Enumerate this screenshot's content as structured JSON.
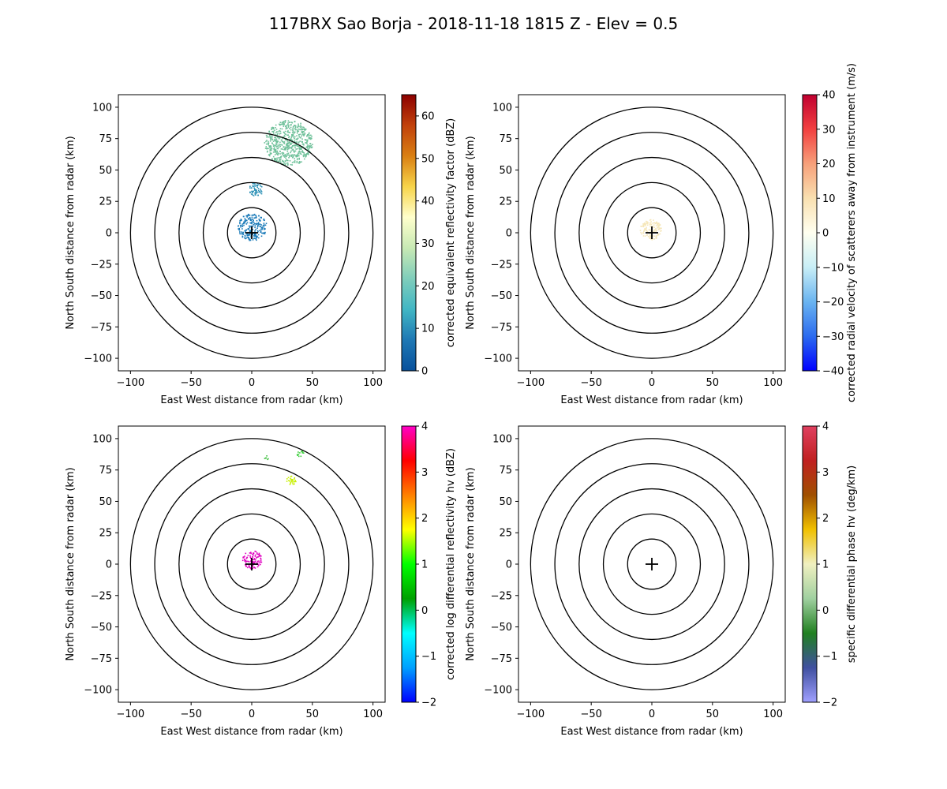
{
  "figure": {
    "title": "117BRX Sao Borja - 2018-11-18 1815 Z -  Elev = 0.5"
  },
  "chart_data": [
    {
      "type": "radar_ppi",
      "title": "",
      "xlabel": "East West distance from radar (km)",
      "ylabel": "North South distance from radar (km)",
      "xlim": [
        -110,
        110
      ],
      "ylim": [
        -110,
        110
      ],
      "xticks": [
        -100,
        -50,
        0,
        50,
        100
      ],
      "yticks": [
        -100,
        -75,
        -50,
        -25,
        0,
        25,
        50,
        75,
        100
      ],
      "range_rings_km": [
        20,
        40,
        60,
        80,
        100
      ],
      "colorbar": {
        "label": "corrected equivalent reflectivity factor (dBZ)",
        "min": 0,
        "max": 65,
        "ticks": [
          0,
          10,
          20,
          30,
          40,
          50,
          60
        ],
        "stops": [
          "#08519c",
          "#1f78b4",
          "#41b6c4",
          "#7fcdbb",
          "#c7e9b4",
          "#ffffcc",
          "#f7d44a",
          "#d97f12",
          "#c1410b",
          "#8c0000"
        ]
      },
      "echo_regions": [
        {
          "name": "near-radar",
          "center_km": [
            0,
            5
          ],
          "radius_km": 12,
          "color": "#1a7ab8"
        },
        {
          "name": "north-band",
          "center_km": [
            3,
            35
          ],
          "radius_km": 6,
          "color": "#2a8fb5"
        },
        {
          "name": "north-east-arc",
          "center_km": [
            30,
            72
          ],
          "radius_km": 20,
          "color": "#6fc19a"
        }
      ]
    },
    {
      "type": "radar_ppi",
      "title": "",
      "xlabel": "East West distance from radar (km)",
      "ylabel": "North South distance from radar (km)",
      "xlim": [
        -110,
        110
      ],
      "ylim": [
        -110,
        110
      ],
      "xticks": [
        -100,
        -50,
        0,
        50,
        100
      ],
      "yticks": [
        -100,
        -75,
        -50,
        -25,
        0,
        25,
        50,
        75,
        100
      ],
      "range_rings_km": [
        20,
        40,
        60,
        80,
        100
      ],
      "colorbar": {
        "label": "corrected radial velocity of scatterers away from instrument (m/s)",
        "min": -40,
        "max": 40,
        "ticks": [
          -40,
          -30,
          -20,
          -10,
          0,
          10,
          20,
          30,
          40
        ],
        "stops": [
          "#0000ff",
          "#2b6bef",
          "#6ab4f0",
          "#c8eef6",
          "#fffff0",
          "#f9e0b0",
          "#f7a07a",
          "#f24040",
          "#c00030"
        ]
      },
      "echo_regions": [
        {
          "name": "near-radar",
          "center_km": [
            -1,
            3
          ],
          "radius_km": 9,
          "color": "#f5e6b8"
        }
      ]
    },
    {
      "type": "radar_ppi",
      "title": "",
      "xlabel": "East West distance from radar (km)",
      "ylabel": "North South distance from radar (km)",
      "xlim": [
        -110,
        110
      ],
      "ylim": [
        -110,
        110
      ],
      "xticks": [
        -100,
        -50,
        0,
        50,
        100
      ],
      "yticks": [
        -100,
        -75,
        -50,
        -25,
        0,
        25,
        50,
        75,
        100
      ],
      "range_rings_km": [
        20,
        40,
        60,
        80,
        100
      ],
      "colorbar": {
        "label": "corrected log differential reflectivity hv (dBZ)",
        "min": -2,
        "max": 4,
        "ticks": [
          -2,
          -1,
          0,
          1,
          2,
          3,
          4
        ],
        "stops": [
          "#0000ff",
          "#00a0ff",
          "#00ffff",
          "#00a000",
          "#00ff00",
          "#ffff00",
          "#ff8000",
          "#ff0000",
          "#ff00c8"
        ]
      },
      "echo_regions": [
        {
          "name": "near-radar",
          "center_km": [
            0,
            4
          ],
          "radius_km": 8,
          "color": "#e000c0"
        },
        {
          "name": "north-east-a",
          "center_km": [
            32,
            67
          ],
          "radius_km": 4,
          "color": "#c8f000"
        },
        {
          "name": "north-east-b",
          "center_km": [
            40,
            88
          ],
          "radius_km": 3,
          "color": "#40d040"
        },
        {
          "name": "north-c",
          "center_km": [
            12,
            85
          ],
          "radius_km": 2,
          "color": "#40c040"
        }
      ]
    },
    {
      "type": "radar_ppi",
      "title": "",
      "xlabel": "East West distance from radar (km)",
      "ylabel": "North South distance from radar (km)",
      "xlim": [
        -110,
        110
      ],
      "ylim": [
        -110,
        110
      ],
      "xticks": [
        -100,
        -50,
        0,
        50,
        100
      ],
      "yticks": [
        -100,
        -75,
        -50,
        -25,
        0,
        25,
        50,
        75,
        100
      ],
      "range_rings_km": [
        20,
        40,
        60,
        80,
        100
      ],
      "colorbar": {
        "label": "specific differential phase hv (deg/km)",
        "min": -2,
        "max": 4,
        "ticks": [
          -2,
          -1,
          0,
          1,
          2,
          3,
          4
        ],
        "stops": [
          "#a0a0ff",
          "#4050a0",
          "#208020",
          "#a0d0a0",
          "#f0f0c0",
          "#f0c000",
          "#a05000",
          "#c02020",
          "#e04060"
        ]
      },
      "echo_regions": []
    }
  ]
}
